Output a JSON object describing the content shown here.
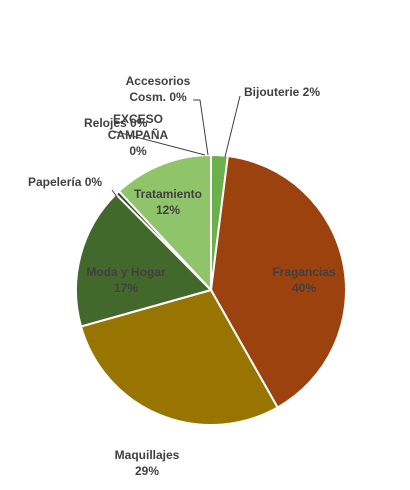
{
  "chart_data": {
    "type": "pie",
    "title": "",
    "slices": [
      {
        "label": "Bijouterie",
        "pct_text": "2%",
        "value": 2,
        "color": "#6ab04c"
      },
      {
        "label": "Fragancias",
        "pct_text": "40%",
        "value": 40,
        "color": "#9c420e"
      },
      {
        "label": "Maquillajes",
        "pct_text": "29%",
        "value": 29,
        "color": "#977500"
      },
      {
        "label": "Moda y Hogar",
        "pct_text": "17%",
        "value": 17,
        "color": "#43682b"
      },
      {
        "label": "Papelería",
        "pct_text": "0%",
        "value": 0.5,
        "color": "#2c4a1e"
      },
      {
        "label": "Tratamiento",
        "pct_text": "12%",
        "value": 12,
        "color": "#8fc46a"
      },
      {
        "label": "Relojes",
        "pct_text": "0%",
        "value": 0,
        "color": "#5a8a3a"
      },
      {
        "label": "EXCESO CAMPAÑA",
        "pct_text": "0%",
        "value": 0,
        "color": "#a9d18e"
      },
      {
        "label": "Accesorios Cosm.",
        "pct_text": "0%",
        "value": 0,
        "color": "#375623"
      }
    ],
    "legend": "none",
    "data_labels": "category-and-percent"
  }
}
